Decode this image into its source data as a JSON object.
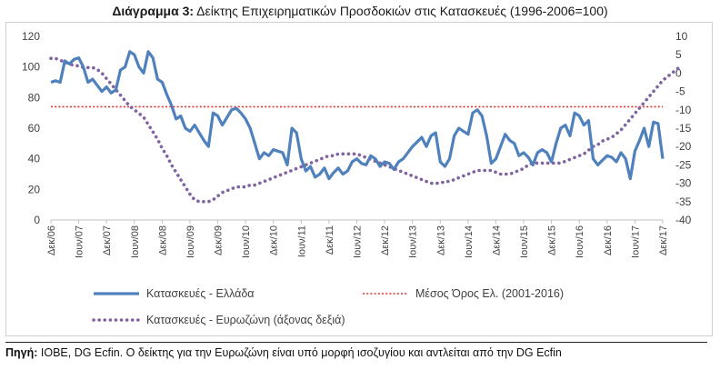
{
  "title": {
    "bold": "Διάγραμμα 3:",
    "text": " Δείκτης Επιχειρηματικών Προσδοκιών στις Κατασκευές (1996-2006=100)"
  },
  "source": {
    "label": "Πηγή:",
    "text": " IOBE, DG Ecfin. Ο δείκτης για την Ευρωζώνη είναι υπό μορφή ισοζυγίου και αντλείται από την DG Ecfin"
  },
  "colors": {
    "greece": "#4f81bd",
    "eurozone": "#8064a2",
    "mean": "#e0302a",
    "axis": "#bfbfbf"
  },
  "chart_data": {
    "type": "line",
    "left_axis": {
      "min": 0,
      "max": 120,
      "ticks": [
        0,
        20,
        40,
        60,
        80,
        100,
        120
      ]
    },
    "right_axis": {
      "min": -40,
      "max": 10,
      "ticks": [
        10,
        5,
        0,
        -5,
        -10,
        -15,
        -20,
        -25,
        -30,
        -35,
        -40
      ]
    },
    "x_labels": [
      "Δεκ/06",
      "Ιουν/07",
      "Δεκ/07",
      "Ιουν/08",
      "Δεκ/08",
      "Ιουν/09",
      "Δεκ/09",
      "Ιουν/10",
      "Δεκ/10",
      "Ιουν/11",
      "Δεκ/11",
      "Ιουν/12",
      "Δεκ/12",
      "Ιουν/13",
      "Δεκ/13",
      "Ιουν/14",
      "Δεκ/14",
      "Ιουν/15",
      "Δεκ/15",
      "Ιουν/16",
      "Δεκ/16",
      "Ιουν/17",
      "Δεκ/17"
    ],
    "months": 133,
    "legend": {
      "greece": "Κατασκευές  - Ελλάδα",
      "mean": "Μέσος Όρος Ελ. (2001-2016)",
      "eurozone": "Κατασκευές - Ευρωζώνη (άξονας δεξιά)"
    },
    "mean_value": 74,
    "series": [
      {
        "name": "Κατασκευές  - Ελλάδα",
        "axis": "left",
        "style": "solid",
        "values": [
          90,
          91,
          90,
          104,
          102,
          105,
          106,
          100,
          90,
          92,
          88,
          84,
          87,
          83,
          85,
          98,
          100,
          110,
          108,
          100,
          96,
          110,
          106,
          92,
          90,
          82,
          75,
          66,
          68,
          60,
          58,
          62,
          57,
          52,
          48,
          70,
          68,
          62,
          67,
          72,
          73,
          70,
          66,
          60,
          50,
          40,
          44,
          42,
          46,
          45,
          44,
          36,
          60,
          57,
          40,
          32,
          35,
          28,
          30,
          34,
          27,
          31,
          34,
          30,
          32,
          38,
          40,
          37,
          36,
          42,
          40,
          35,
          38,
          37,
          33,
          38,
          40,
          44,
          48,
          51,
          54,
          48,
          55,
          57,
          38,
          35,
          40,
          55,
          60,
          58,
          56,
          70,
          72,
          68,
          55,
          37,
          40,
          48,
          56,
          52,
          50,
          42,
          44,
          41,
          36,
          44,
          46,
          44,
          38,
          50,
          60,
          62,
          55,
          70,
          68,
          62,
          65,
          40,
          36,
          39,
          42,
          41,
          38,
          44,
          40,
          27,
          45,
          52,
          60,
          48,
          64,
          63,
          40
        ]
      },
      {
        "name": "Κατασκευές - Ευρωζώνη (άξονας δεξιά)",
        "axis": "right",
        "style": "dotted",
        "values": [
          4,
          4,
          3.5,
          3,
          2.5,
          2,
          2,
          1.5,
          1.5,
          1.5,
          1,
          0,
          -1.5,
          -3,
          -4.5,
          -6,
          -7.5,
          -9,
          -10,
          -11,
          -12,
          -14,
          -16,
          -18,
          -20.5,
          -22.5,
          -25,
          -27,
          -29,
          -31,
          -33,
          -34.5,
          -35,
          -35,
          -35,
          -34.5,
          -33.5,
          -32.5,
          -32,
          -31.5,
          -31,
          -31,
          -31,
          -30.5,
          -30.5,
          -30,
          -29.5,
          -29,
          -28.5,
          -28,
          -27.5,
          -27,
          -26.5,
          -26,
          -25.5,
          -25,
          -24.5,
          -24,
          -23.5,
          -23,
          -22.5,
          -22.5,
          -22,
          -22,
          -22,
          -22,
          -22,
          -22.5,
          -23,
          -23.5,
          -24,
          -24.5,
          -25,
          -25.5,
          -26,
          -26.5,
          -27,
          -27.5,
          -28,
          -28.5,
          -29,
          -29.5,
          -30,
          -30,
          -30,
          -29.5,
          -29.5,
          -29,
          -28.5,
          -28,
          -27.5,
          -27,
          -26.5,
          -26.5,
          -26.5,
          -26.5,
          -27,
          -27.5,
          -27.5,
          -27.5,
          -27,
          -26.5,
          -26,
          -25,
          -24.5,
          -24.5,
          -24.5,
          -24.5,
          -24.5,
          -24.5,
          -24.5,
          -24,
          -23.5,
          -23,
          -22.5,
          -22,
          -21,
          -20,
          -19.5,
          -18.5,
          -18,
          -17.5,
          -16.5,
          -15.5,
          -14,
          -12.5,
          -11,
          -9.5,
          -8,
          -6.5,
          -5,
          -3.5,
          -2,
          -1,
          0,
          1,
          2
        ]
      }
    ]
  }
}
